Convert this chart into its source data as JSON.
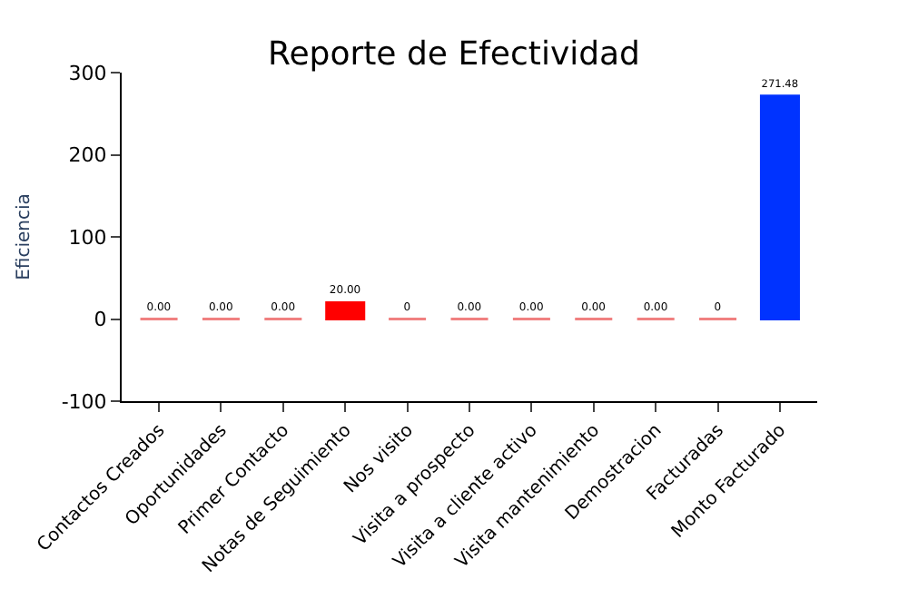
{
  "chart_data": {
    "type": "bar",
    "title": "Reporte de Efectividad",
    "ylabel": "Eficiencia",
    "categories": [
      "Contactos Creados",
      "Oportunidades",
      "Primer Contacto",
      "Notas de Seguimiento",
      "Nos visito",
      "Visita a prospecto",
      "Visita a cliente activo",
      "Visita mantenimiento",
      "Demostracion",
      "Facturadas",
      "Monto Facturado"
    ],
    "values": [
      0,
      0,
      0,
      20,
      0,
      0,
      0,
      0,
      0,
      0,
      271.48
    ],
    "colors": [
      "#f08080",
      "#f08080",
      "#f08080",
      "#ff0000",
      "#f08080",
      "#f08080",
      "#f08080",
      "#f08080",
      "#f08080",
      "#f08080",
      "#0033ff"
    ],
    "value_labels": [
      "0.00",
      "0.00",
      "0.00",
      "20.00",
      "0",
      "0.00",
      "0.00",
      "0.00",
      "0.00",
      "0",
      "271.48"
    ],
    "ylim": [
      -100,
      300
    ],
    "yticks": [
      -100,
      0,
      100,
      200,
      300
    ]
  }
}
